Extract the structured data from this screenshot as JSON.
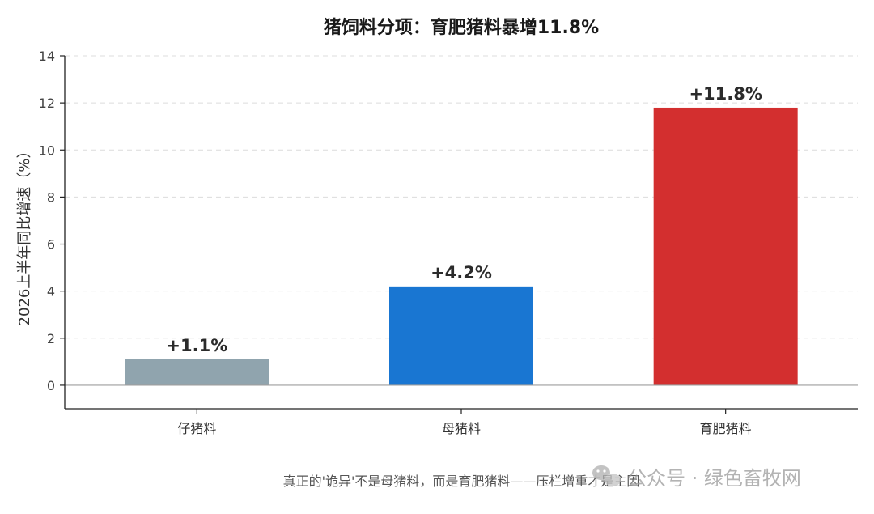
{
  "chart_data": {
    "type": "bar",
    "title": "猪饲料分项：育肥猪料暴增11.8%",
    "ylabel": "2026上半年同比增速（%）",
    "xlabel": "",
    "categories": [
      "仔猪料",
      "母猪料",
      "育肥猪料"
    ],
    "values": [
      1.1,
      4.2,
      11.8
    ],
    "data_labels": [
      "+1.1%",
      "+4.2%",
      "+11.8%"
    ],
    "colors": [
      "#90a4ae",
      "#1976d2",
      "#d32f2f"
    ],
    "ylim": [
      -1,
      14
    ],
    "yticks": [
      0,
      2,
      4,
      6,
      8,
      10,
      12,
      14
    ],
    "grid": true
  },
  "caption": "真正的'诡异'不是母猪料，而是育肥猪料——压栏增重才是主因",
  "watermark": {
    "icon": "wechat-icon",
    "text": "公众号 · 绿色畜牧网"
  }
}
